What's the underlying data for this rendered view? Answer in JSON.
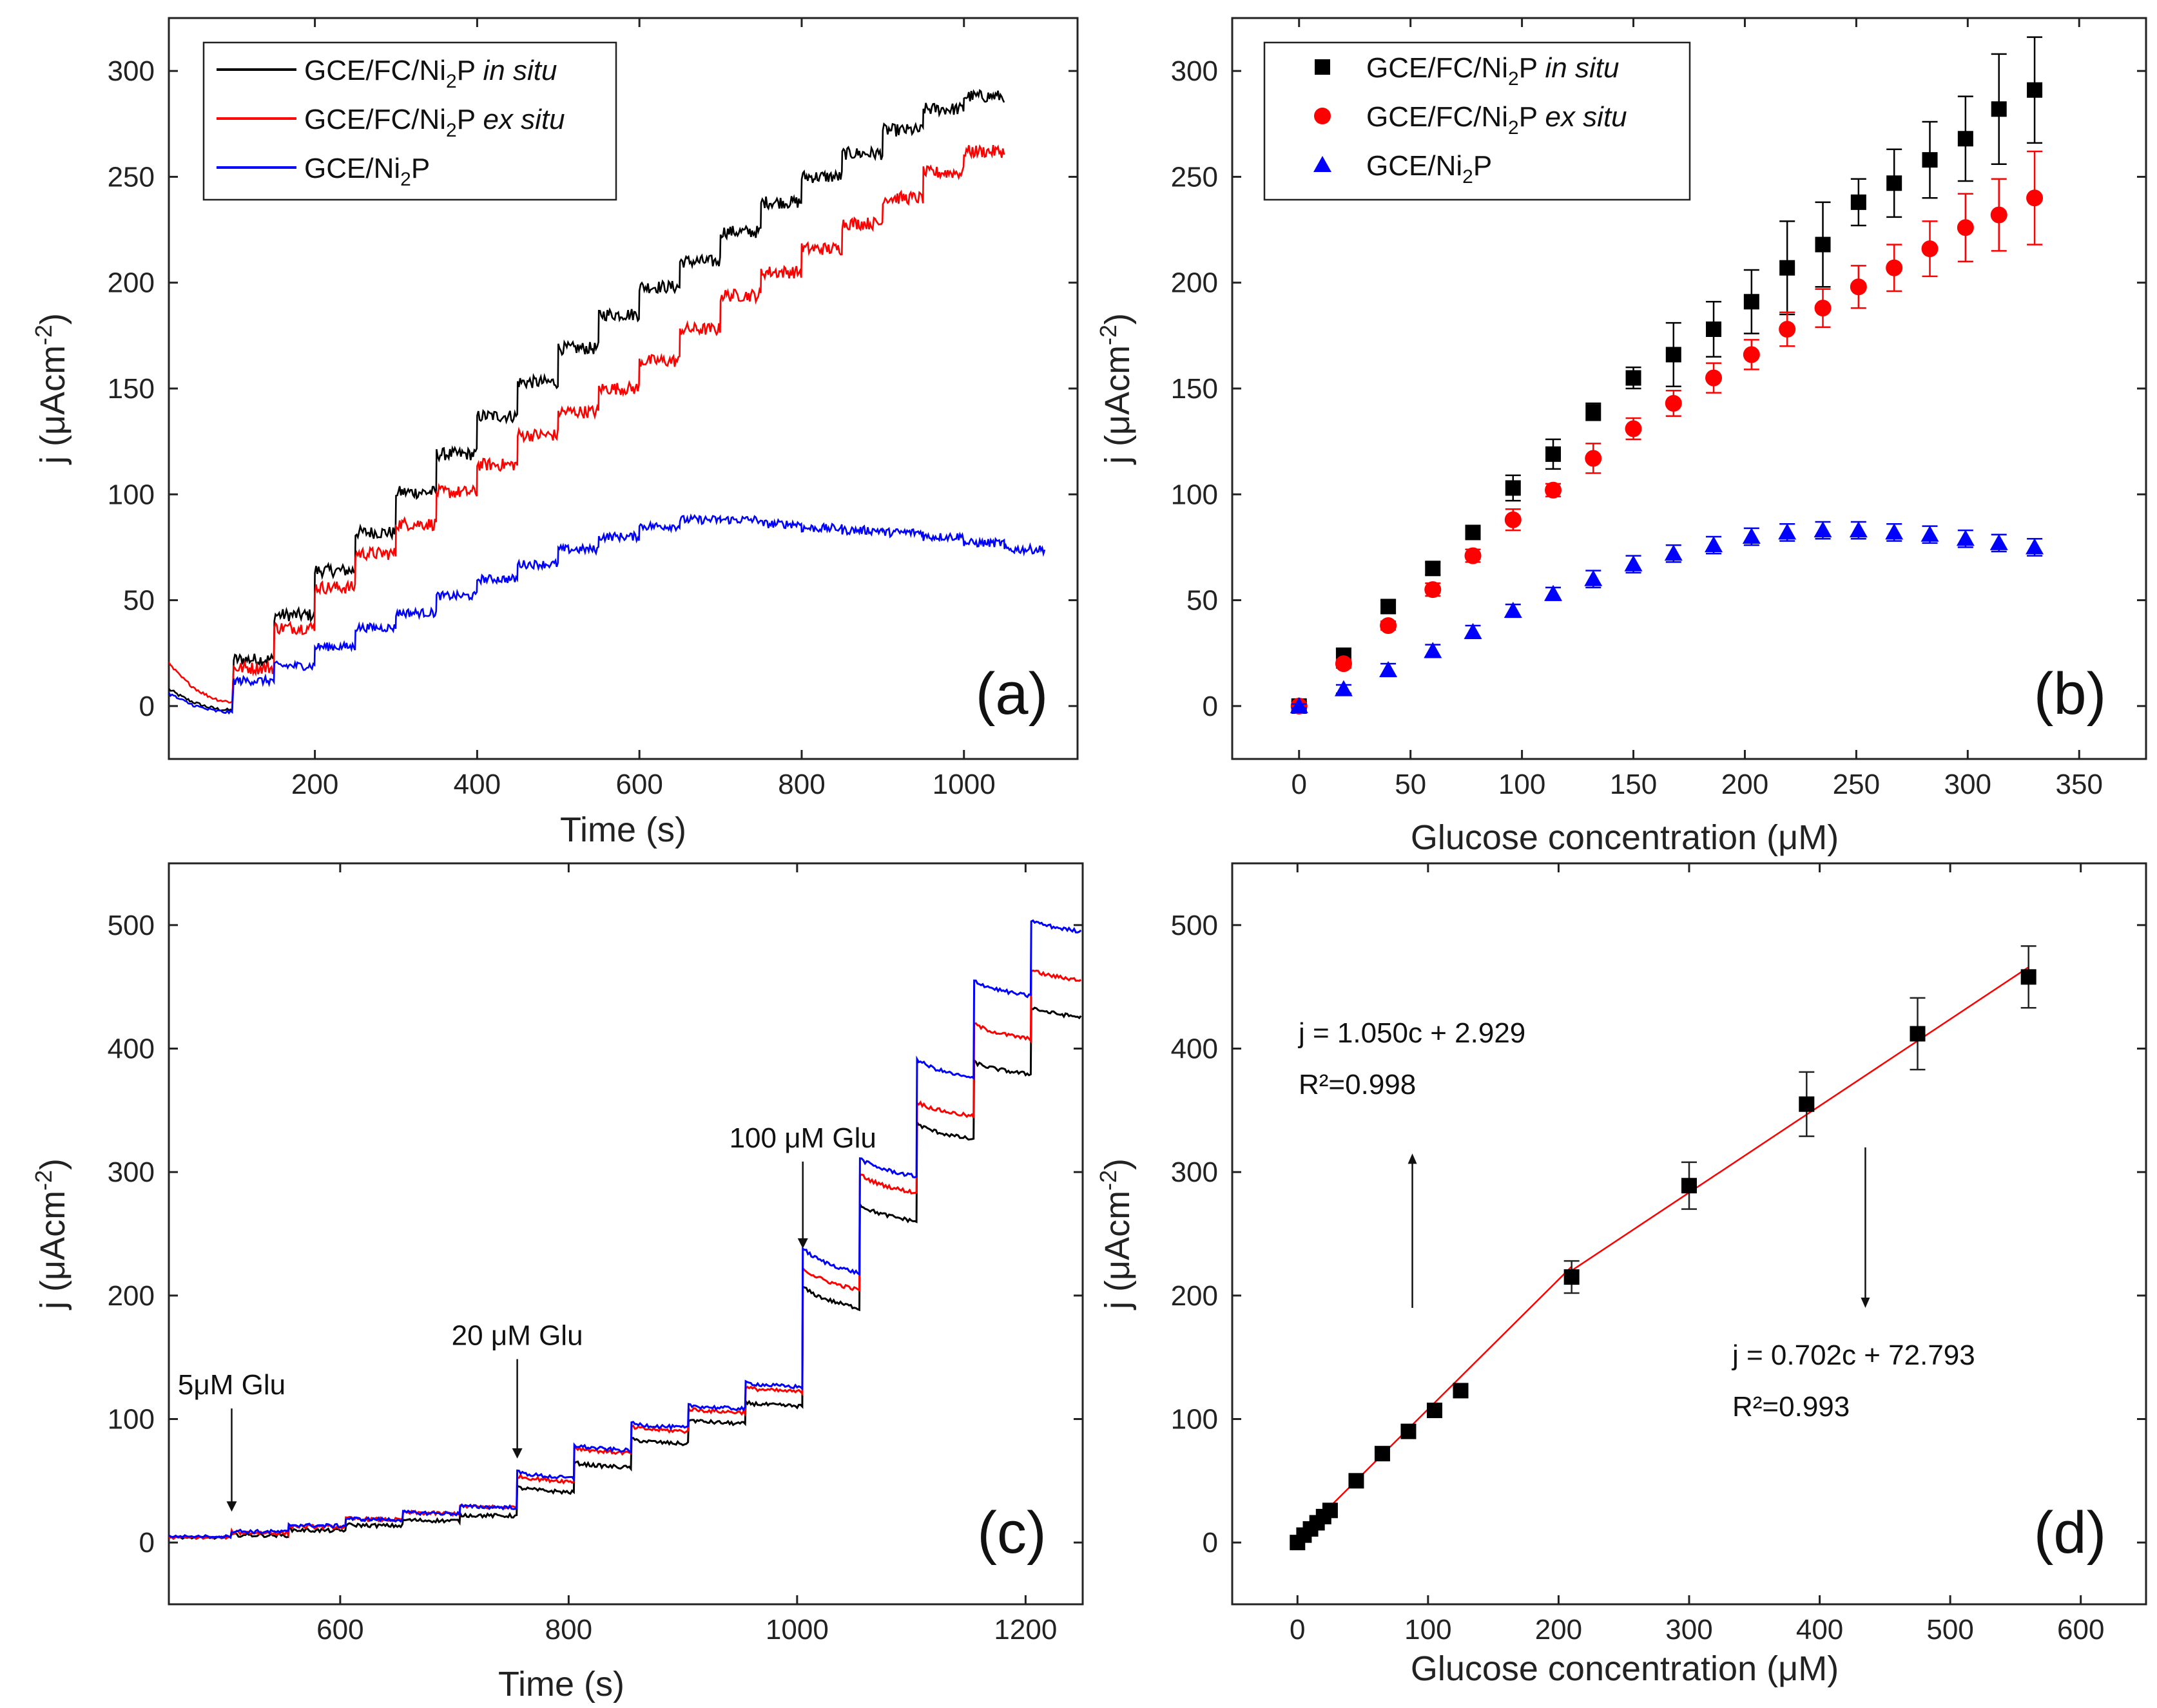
{
  "chart_data": [
    {
      "panel": "(a)",
      "type": "line",
      "xlabel": "Time (s)",
      "ylabel": "j (μAcm⁻²)",
      "xlim": [
        20,
        1140
      ],
      "ylim": [
        -25,
        325
      ],
      "xticks": [
        200,
        400,
        600,
        800,
        1000
      ],
      "yticks": [
        0,
        50,
        100,
        150,
        200,
        250,
        300
      ],
      "x_start": 20,
      "first_step": 100,
      "step_interval": 50,
      "legend": [
        "GCE/FC/Ni₂P in situ",
        "GCE/FC/Ni₂P ex situ",
        "GCE/Ni₂P"
      ],
      "legend_position": "top-left",
      "series": [
        {
          "name": "GCE/FC/Ni₂P in situ",
          "color": "#000000",
          "x_end": 1050,
          "start_value": 8,
          "pre_step_min": -2,
          "levels": [
            22,
            43,
            64,
            82,
            101,
            119,
            137,
            153,
            169,
            185,
            198,
            210,
            224,
            238,
            250,
            261,
            272,
            282,
            288
          ]
        },
        {
          "name": "GCE/FC/Ni₂P ex situ",
          "color": "#ff0000",
          "x_end": 1050,
          "start_value": 20,
          "pre_step_min": 2,
          "levels": [
            18,
            37,
            56,
            72,
            86,
            101,
            114,
            128,
            139,
            150,
            163,
            178,
            194,
            205,
            216,
            228,
            240,
            252,
            262
          ]
        },
        {
          "name": "GCE/Ni₂P",
          "color": "#0000ff",
          "x_end": 1100,
          "start_value": 6,
          "pre_step_min": -3,
          "levels": [
            12,
            19,
            28,
            37,
            44,
            52,
            60,
            67,
            74,
            80,
            85,
            88,
            88,
            86,
            84,
            83,
            82,
            80,
            77,
            74
          ]
        }
      ]
    },
    {
      "panel": "(b)",
      "type": "scatter",
      "xlabel": "Glucose concentration (μM)",
      "ylabel": "j (μAcm⁻²)",
      "xlim": [
        -30,
        380
      ],
      "ylim": [
        -25,
        325
      ],
      "xticks": [
        0,
        50,
        100,
        150,
        200,
        250,
        300,
        350
      ],
      "yticks": [
        0,
        50,
        100,
        150,
        200,
        250,
        300
      ],
      "legend": [
        "GCE/FC/Ni₂P in situ",
        "GCE/FC/Ni₂P ex situ",
        "GCE/Ni₂P"
      ],
      "legend_position": "top-left",
      "x": [
        0,
        20,
        40,
        60,
        78,
        96,
        114,
        132,
        150,
        168,
        186,
        203,
        219,
        235,
        251,
        267,
        283,
        299,
        314,
        330
      ],
      "series": [
        {
          "name": "GCE/FC/Ni₂P in situ",
          "marker": "square",
          "color": "#000000",
          "values": [
            0,
            24,
            47,
            65,
            82,
            103,
            119,
            139,
            155,
            166,
            178,
            191,
            207,
            218,
            238,
            247,
            258,
            268,
            282,
            291
          ],
          "errors": [
            2,
            3,
            3,
            3,
            3,
            6,
            7,
            4,
            5,
            15,
            13,
            15,
            22,
            20,
            11,
            16,
            18,
            20,
            26,
            25
          ]
        },
        {
          "name": "GCE/FC/Ni₂P ex situ",
          "marker": "circle",
          "color": "#ff0000",
          "values": [
            0,
            20,
            38,
            55,
            71,
            88,
            102,
            117,
            131,
            143,
            155,
            166,
            178,
            188,
            198,
            207,
            216,
            226,
            232,
            240
          ],
          "errors": [
            1,
            2,
            2,
            3,
            3,
            5,
            3,
            7,
            5,
            6,
            7,
            7,
            8,
            9,
            10,
            11,
            13,
            16,
            17,
            22
          ]
        },
        {
          "name": "GCE/Ni₂P",
          "marker": "triangle",
          "color": "#0000ff",
          "values": [
            0,
            8,
            17,
            26,
            35,
            45,
            53,
            60,
            67,
            72,
            76,
            80,
            82,
            83,
            83,
            82,
            81,
            79,
            77,
            75
          ],
          "errors": [
            1,
            2,
            3,
            3,
            3,
            3,
            3,
            4,
            4,
            4,
            4,
            4,
            4,
            4,
            4,
            4,
            4,
            4,
            4,
            4
          ]
        }
      ]
    },
    {
      "panel": "(c)",
      "type": "line",
      "xlabel": "Time (s)",
      "ylabel": "j (μAcm⁻²)",
      "xlim": [
        450,
        1250
      ],
      "ylim": [
        -50,
        550
      ],
      "xticks": [
        600,
        800,
        1000,
        1200
      ],
      "yticks": [
        0,
        100,
        200,
        300,
        400,
        500
      ],
      "x_start": 450,
      "x_end": 1250,
      "first_step": 505,
      "step_interval": 50,
      "annotations": [
        {
          "text": "5μM Glu",
          "x": 505,
          "y_text": 120,
          "y_tip": 25
        },
        {
          "text": "20 μM Glu",
          "x": 755,
          "y_text": 160,
          "y_tip": 68
        },
        {
          "text": "100 μM Glu",
          "x": 1005,
          "y_text": 320,
          "y_tip": 238
        }
      ],
      "series": [
        {
          "name": "black",
          "color": "#000000",
          "start_value": 4,
          "levels": [
            6,
            10,
            14,
            18,
            22,
            43,
            63,
            82,
            98,
            112,
            200,
            268,
            334,
            385,
            430
          ]
        },
        {
          "name": "red",
          "color": "#ff0000",
          "start_value": 4,
          "levels": [
            8,
            13,
            19,
            24,
            29,
            52,
            75,
            92,
            107,
            124,
            215,
            292,
            352,
            415,
            460
          ]
        },
        {
          "name": "blue",
          "color": "#0000ff",
          "start_value": 5,
          "levels": [
            9,
            14,
            19,
            24,
            29,
            55,
            77,
            95,
            110,
            128,
            230,
            305,
            385,
            450,
            500
          ]
        }
      ]
    },
    {
      "panel": "(d)",
      "type": "scatter",
      "xlabel": "Glucose concentration (μM)",
      "ylabel": "j (μAcm⁻²)",
      "xlim": [
        -50,
        650
      ],
      "ylim": [
        -50,
        550
      ],
      "xticks": [
        0,
        100,
        200,
        300,
        400,
        500,
        600
      ],
      "yticks": [
        0,
        100,
        200,
        300,
        400,
        500
      ],
      "x": [
        0,
        5,
        10,
        15,
        20,
        25,
        45,
        65,
        85,
        105,
        125,
        210,
        300,
        390,
        475,
        560
      ],
      "series": [
        {
          "name": "measured",
          "marker": "square",
          "color": "#000000",
          "values": [
            0,
            6,
            11,
            16,
            21,
            26,
            50,
            72,
            90,
            107,
            123,
            215,
            289,
            355,
            412,
            458
          ],
          "errors": [
            0,
            0,
            0,
            0,
            0,
            0,
            0,
            0,
            0,
            0,
            0,
            13,
            19,
            26,
            29,
            25
          ]
        }
      ],
      "fit_lines": [
        {
          "equation": "j = 1.050c + 2.929",
          "r2": "R²=0.998",
          "x_from": 0,
          "x_to": 210,
          "slope": 1.05,
          "intercept": 2.929
        },
        {
          "equation": "j = 0.702c + 72.793",
          "r2": "R²=0.993",
          "x_from": 210,
          "x_to": 560,
          "slope": 0.702,
          "intercept": 72.793
        }
      ],
      "fit_color": "#ff0000",
      "annotations": [
        {
          "equation_index": 0,
          "arrow_x": 88,
          "arrow_from": 190,
          "arrow_to": 315,
          "direction": "up"
        },
        {
          "equation_index": 1,
          "arrow_x": 435,
          "arrow_from": 320,
          "arrow_to": 190,
          "direction": "down"
        }
      ]
    }
  ],
  "labels": {
    "panel_a": "(a)",
    "panel_b": "(b)",
    "panel_c": "(c)",
    "panel_d": "(d)",
    "time_axis": "Time (s)",
    "glucose_axis": "Glucose concentration (μM)",
    "j_axis": "j (μAcm⁻²)"
  }
}
